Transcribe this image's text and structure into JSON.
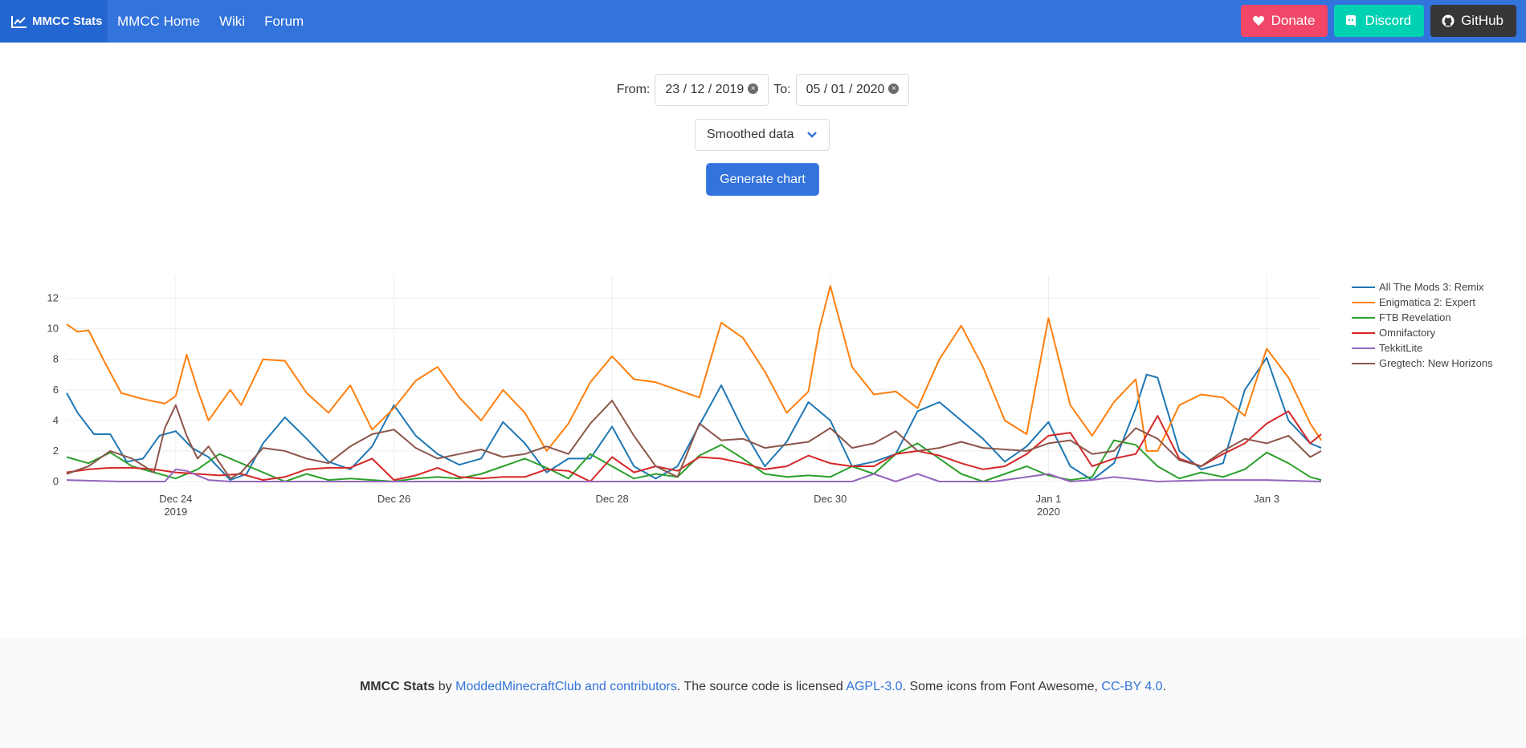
{
  "nav": {
    "brand": "MMCC Stats",
    "links": [
      "MMCC Home",
      "Wiki",
      "Forum"
    ],
    "buttons": {
      "donate": "Donate",
      "discord": "Discord",
      "github": "GitHub"
    }
  },
  "form": {
    "from_label": "From:",
    "from_value": "23 / 12 / 2019",
    "to_label": "To:",
    "to_value": "05 / 01 / 2020",
    "select_value": "Smoothed data",
    "generate_label": "Generate chart"
  },
  "chart_data": {
    "type": "line",
    "title": "",
    "ylim": [
      0,
      13.5
    ],
    "yticks": [
      0,
      2,
      4,
      6,
      8,
      10,
      12
    ],
    "x_range_days": [
      0,
      11.5
    ],
    "xticks": [
      {
        "pos": 1,
        "label": "Dec 24",
        "sub": "2019"
      },
      {
        "pos": 3,
        "label": "Dec 26",
        "sub": ""
      },
      {
        "pos": 5,
        "label": "Dec 28",
        "sub": ""
      },
      {
        "pos": 7,
        "label": "Dec 30",
        "sub": ""
      },
      {
        "pos": 9,
        "label": "Jan 1",
        "sub": "2020"
      },
      {
        "pos": 11,
        "label": "Jan 3",
        "sub": ""
      }
    ],
    "legend_position": "right",
    "grid": true,
    "series": [
      {
        "name": "All The Mods 3: Remix",
        "color": "#1f77b4",
        "x": [
          0,
          0.1,
          0.25,
          0.4,
          0.55,
          0.7,
          0.85,
          1,
          1.15,
          1.3,
          1.5,
          1.65,
          1.8,
          2,
          2.2,
          2.4,
          2.6,
          2.8,
          3,
          3.2,
          3.4,
          3.6,
          3.8,
          4,
          4.2,
          4.4,
          4.6,
          4.8,
          5,
          5.2,
          5.4,
          5.6,
          5.8,
          6,
          6.2,
          6.4,
          6.6,
          6.8,
          7,
          7.2,
          7.4,
          7.6,
          7.8,
          8,
          8.2,
          8.4,
          8.6,
          8.8,
          9,
          9.2,
          9.4,
          9.6,
          9.8,
          9.9,
          10,
          10.2,
          10.4,
          10.6,
          10.8,
          11,
          11.2,
          11.4,
          11.5
        ],
        "y": [
          5.8,
          4.5,
          3.1,
          3.1,
          1.3,
          1.5,
          3.0,
          3.3,
          2.2,
          1.6,
          0.1,
          0.5,
          2.5,
          4.2,
          2.8,
          1.3,
          0.8,
          2.3,
          5.0,
          3.0,
          1.8,
          1.1,
          1.5,
          3.9,
          2.5,
          0.6,
          1.5,
          1.5,
          3.6,
          1.0,
          0.2,
          1.0,
          3.7,
          6.3,
          3.4,
          1.0,
          2.6,
          5.2,
          4.0,
          1.0,
          1.3,
          1.8,
          4.6,
          5.2,
          4.0,
          2.8,
          1.3,
          2.3,
          3.9,
          1.0,
          0.1,
          1.2,
          4.8,
          7.0,
          6.8,
          2.0,
          0.8,
          1.2,
          6.0,
          8.1,
          4.0,
          2.5,
          2.2
        ]
      },
      {
        "name": "Enigmatica 2: Expert",
        "color": "#ff7f0e",
        "x": [
          0,
          0.1,
          0.2,
          0.35,
          0.5,
          0.7,
          0.9,
          1,
          1.1,
          1.2,
          1.3,
          1.5,
          1.6,
          1.8,
          2,
          2.2,
          2.4,
          2.6,
          2.8,
          3,
          3.2,
          3.4,
          3.6,
          3.8,
          4,
          4.2,
          4.4,
          4.6,
          4.8,
          5,
          5.2,
          5.4,
          5.6,
          5.8,
          6,
          6.2,
          6.4,
          6.6,
          6.8,
          6.9,
          7,
          7.2,
          7.4,
          7.6,
          7.8,
          8,
          8.2,
          8.4,
          8.6,
          8.8,
          9,
          9.2,
          9.4,
          9.6,
          9.8,
          9.9,
          10,
          10.2,
          10.4,
          10.6,
          10.8,
          11,
          11.2,
          11.4,
          11.5
        ],
        "y": [
          10.3,
          9.8,
          9.9,
          7.8,
          5.8,
          5.4,
          5.1,
          5.6,
          8.3,
          6.0,
          4.0,
          6.0,
          5.0,
          8.0,
          7.9,
          5.8,
          4.5,
          6.3,
          3.4,
          4.8,
          6.6,
          7.5,
          5.5,
          4.0,
          6.0,
          4.5,
          2.0,
          3.8,
          6.5,
          8.2,
          6.7,
          6.5,
          6.0,
          5.5,
          10.4,
          9.4,
          7.2,
          4.5,
          5.9,
          10.0,
          12.8,
          7.5,
          5.7,
          5.9,
          4.8,
          8.0,
          10.2,
          7.5,
          4.0,
          3.1,
          10.7,
          5.0,
          3.0,
          5.2,
          6.7,
          2.0,
          2.0,
          5.0,
          5.7,
          5.5,
          4.3,
          8.7,
          6.8,
          3.8,
          2.7
        ]
      },
      {
        "name": "FTB Revelation",
        "color": "#2ca02c",
        "x": [
          0,
          0.2,
          0.4,
          0.6,
          0.8,
          1,
          1.2,
          1.4,
          1.6,
          1.8,
          2,
          2.2,
          2.4,
          2.6,
          2.8,
          3,
          3.2,
          3.4,
          3.6,
          3.8,
          4,
          4.2,
          4.4,
          4.6,
          4.8,
          5,
          5.2,
          5.4,
          5.6,
          5.8,
          6,
          6.2,
          6.4,
          6.6,
          6.8,
          7,
          7.2,
          7.4,
          7.6,
          7.8,
          8,
          8.2,
          8.4,
          8.6,
          8.8,
          9,
          9.2,
          9.4,
          9.6,
          9.8,
          10,
          10.2,
          10.4,
          10.6,
          10.8,
          11,
          11.2,
          11.4,
          11.5
        ],
        "y": [
          1.6,
          1.2,
          1.9,
          1.0,
          0.6,
          0.2,
          0.8,
          1.8,
          1.2,
          0.6,
          0.0,
          0.5,
          0.1,
          0.2,
          0.1,
          0.0,
          0.2,
          0.3,
          0.2,
          0.5,
          1.0,
          1.5,
          0.9,
          0.2,
          1.8,
          1.0,
          0.2,
          0.5,
          0.3,
          1.7,
          2.4,
          1.5,
          0.5,
          0.3,
          0.4,
          0.3,
          1.0,
          0.5,
          1.8,
          2.5,
          1.5,
          0.5,
          0.0,
          0.5,
          1.0,
          0.4,
          0.1,
          0.3,
          2.7,
          2.4,
          1.0,
          0.2,
          0.6,
          0.3,
          0.8,
          1.9,
          1.2,
          0.3,
          0.1
        ]
      },
      {
        "name": "Omnifactory",
        "color": "#d62728",
        "x": [
          0,
          0.2,
          0.4,
          0.6,
          0.8,
          1,
          1.2,
          1.4,
          1.6,
          1.8,
          2,
          2.2,
          2.4,
          2.6,
          2.8,
          3,
          3.2,
          3.4,
          3.6,
          3.8,
          4,
          4.2,
          4.4,
          4.6,
          4.8,
          5,
          5.2,
          5.4,
          5.6,
          5.8,
          6,
          6.2,
          6.4,
          6.6,
          6.8,
          7,
          7.2,
          7.4,
          7.6,
          7.8,
          8,
          8.2,
          8.4,
          8.6,
          8.8,
          9,
          9.2,
          9.4,
          9.6,
          9.8,
          10,
          10.2,
          10.4,
          10.6,
          10.8,
          11,
          11.2,
          11.4,
          11.5
        ],
        "y": [
          0.6,
          0.8,
          0.9,
          0.9,
          0.8,
          0.6,
          0.5,
          0.4,
          0.5,
          0.1,
          0.3,
          0.8,
          0.9,
          0.9,
          1.5,
          0.1,
          0.4,
          0.9,
          0.3,
          0.2,
          0.3,
          0.3,
          0.8,
          0.7,
          0.0,
          1.6,
          0.6,
          1.0,
          0.7,
          1.6,
          1.5,
          1.2,
          0.8,
          1.0,
          1.7,
          1.2,
          1.0,
          1.0,
          1.8,
          2.0,
          1.7,
          1.2,
          0.8,
          1.0,
          1.8,
          3.0,
          3.2,
          1.0,
          1.5,
          1.8,
          4.3,
          1.5,
          1.0,
          1.8,
          2.5,
          3.8,
          4.6,
          2.5,
          3.1
        ]
      },
      {
        "name": "TekkitLite",
        "color": "#9467bd",
        "x": [
          0,
          0.5,
          0.9,
          1,
          1.1,
          1.3,
          1.5,
          2,
          3,
          4,
          5,
          6,
          7,
          7.2,
          7.4,
          7.6,
          7.8,
          8,
          8.5,
          9,
          9.2,
          9.4,
          9.6,
          10,
          10.5,
          11,
          11.5
        ],
        "y": [
          0.1,
          0.0,
          0.0,
          0.8,
          0.7,
          0.1,
          0.0,
          0.0,
          0.0,
          0.0,
          0.0,
          0.0,
          0.0,
          0.0,
          0.5,
          0.0,
          0.5,
          0.0,
          0.0,
          0.5,
          0.0,
          0.1,
          0.3,
          0.0,
          0.1,
          0.1,
          0.0
        ]
      },
      {
        "name": "Gregtech: New Horizons",
        "color": "#8c564b",
        "x": [
          0,
          0.2,
          0.4,
          0.6,
          0.8,
          0.9,
          1,
          1.1,
          1.2,
          1.3,
          1.5,
          1.6,
          1.8,
          2,
          2.2,
          2.4,
          2.6,
          2.8,
          3,
          3.2,
          3.4,
          3.6,
          3.8,
          4,
          4.2,
          4.4,
          4.6,
          4.8,
          5,
          5.2,
          5.4,
          5.6,
          5.8,
          6,
          6.2,
          6.4,
          6.6,
          6.8,
          7,
          7.2,
          7.4,
          7.6,
          7.8,
          8,
          8.2,
          8.4,
          8.6,
          8.8,
          9,
          9.2,
          9.4,
          9.6,
          9.8,
          10,
          10.2,
          10.4,
          10.6,
          10.8,
          11,
          11.2,
          11.4,
          11.5
        ],
        "y": [
          0.5,
          1.0,
          2.0,
          1.5,
          0.6,
          3.5,
          5.0,
          3.0,
          1.5,
          2.3,
          0.2,
          0.6,
          2.2,
          2.0,
          1.5,
          1.2,
          2.3,
          3.1,
          3.4,
          2.2,
          1.5,
          1.8,
          2.1,
          1.6,
          1.8,
          2.3,
          1.8,
          3.8,
          5.3,
          3.0,
          1.0,
          0.3,
          3.8,
          2.7,
          2.8,
          2.2,
          2.4,
          2.6,
          3.5,
          2.2,
          2.5,
          3.3,
          2.0,
          2.2,
          2.6,
          2.2,
          2.1,
          2.0,
          2.5,
          2.7,
          1.8,
          2.0,
          3.5,
          2.8,
          1.4,
          1.0,
          2.0,
          2.8,
          2.5,
          3.0,
          1.6,
          2.0
        ]
      }
    ]
  },
  "footer": {
    "brand": "MMCC Stats",
    "by": " by ",
    "author_link": "ModdedMinecraftClub and contributors",
    "license_text": ". The source code is licensed ",
    "license_link": "AGPL-3.0",
    "icons_text": ". Some icons from Font Awesome, ",
    "icons_link": "CC-BY 4.0",
    "end": "."
  }
}
